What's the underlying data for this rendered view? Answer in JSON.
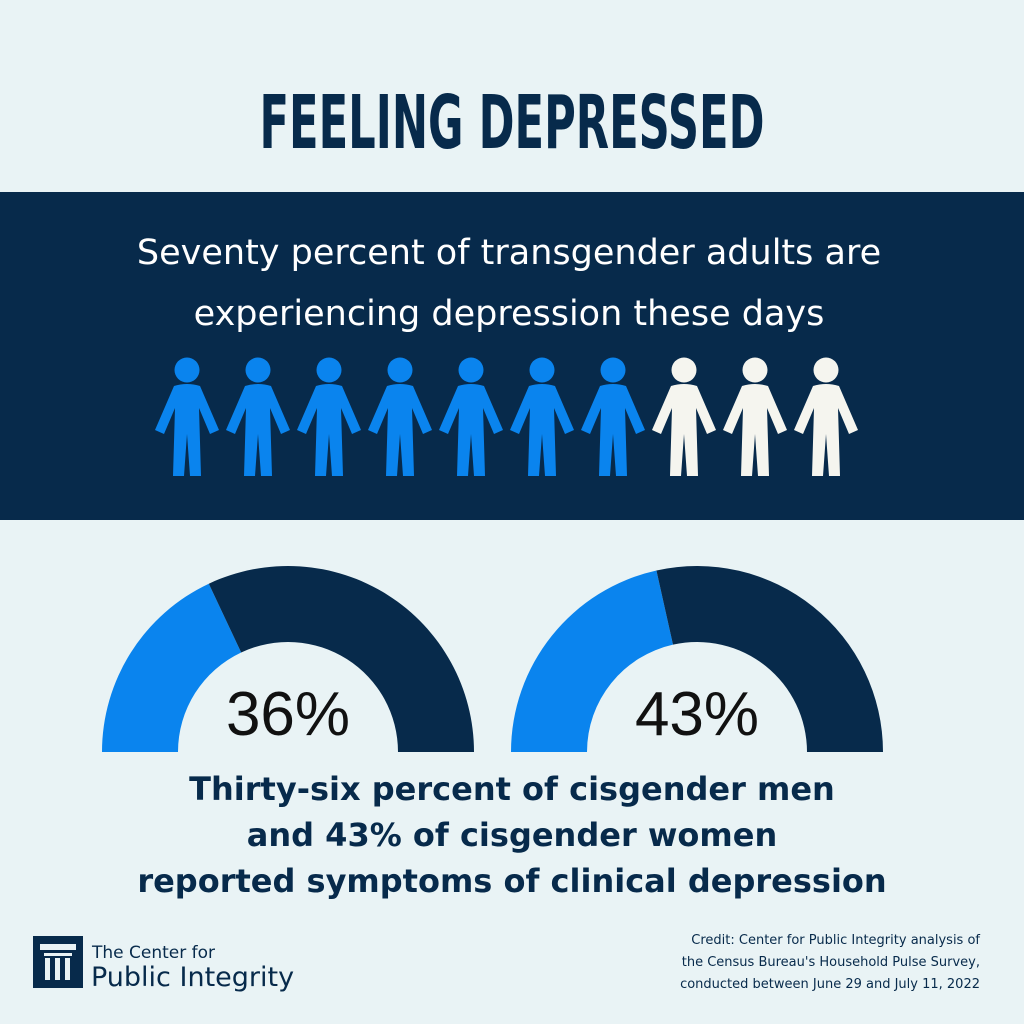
{
  "title": "FEELING DEPRESSED",
  "chart_data": [
    {
      "type": "pictogram",
      "title": [
        "Seventy percent of transgender adults are",
        "experiencing depression these days"
      ],
      "icons": 10,
      "values": [
        70
      ],
      "ylim": [
        0,
        100
      ],
      "color": "#0a84ee",
      "rest_color": "#f5f5ef"
    },
    {
      "type": "gauge",
      "values": [
        36
      ],
      "value_labels": [
        "36%"
      ],
      "ylim": [
        0,
        100
      ],
      "color": "#0a84ee",
      "rest_color": "#072a4b"
    },
    {
      "type": "gauge",
      "values": [
        43
      ],
      "value_labels": [
        "43%"
      ],
      "ylim": [
        0,
        100
      ],
      "color": "#0a84ee",
      "rest_color": "#072a4b"
    }
  ],
  "caption": [
    "Thirty-six percent of cisgender men",
    "and 43% of cisgender women",
    "reported symptoms of clinical depression"
  ],
  "logo": [
    "The Center for",
    "Public Integrity"
  ],
  "credit": [
    "Credit: Center for Public Integrity analysis of",
    "the Census Bureau's Household Pulse Survey,",
    "conducted between June 29 and July 11, 2022"
  ]
}
